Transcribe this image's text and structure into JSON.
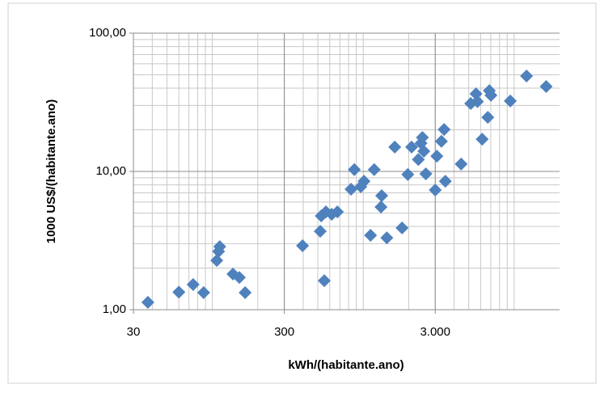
{
  "chart_data": {
    "type": "scatter",
    "xlabel": "kWh/(habitante.ano)",
    "ylabel": "1000 US$/(habitante.ano)",
    "x_log": true,
    "y_log": true,
    "grid": true,
    "minor_grid": true,
    "xlim": [
      30,
      20000
    ],
    "ylim": [
      1,
      100
    ],
    "xticks": [
      30,
      300,
      {
        "value": 3000,
        "label": "3.000"
      }
    ],
    "yticks": [
      {
        "value": 1,
        "label": "1,00"
      },
      {
        "value": 10,
        "label": "10,00"
      },
      {
        "value": 100,
        "label": "100,00"
      }
    ],
    "color": "#4f81bd",
    "x": [
      37.4,
      60,
      74.6,
      87.6,
      107,
      110,
      112,
      137,
      151,
      165,
      396,
      519,
      527,
      552,
      566,
      618,
      674,
      830,
      873,
      963,
      1012,
      1118,
      1182,
      1311,
      1325,
      1433,
      1618,
      1808,
      1974,
      2092,
      2318,
      2416,
      2467,
      2520,
      2600,
      3000,
      3075,
      3296,
      3434,
      3500,
      4455,
      5155,
      5590,
      5710,
      6140,
      6690,
      6850,
      7020,
      9430,
      12080,
      16300
    ],
    "values": [
      1.13,
      1.34,
      1.52,
      1.33,
      2.27,
      2.64,
      2.86,
      1.81,
      1.71,
      1.33,
      2.9,
      3.69,
      4.77,
      1.62,
      5.1,
      4.9,
      5.1,
      7.44,
      10.3,
      7.75,
      8.5,
      3.45,
      10.3,
      5.53,
      6.68,
      3.31,
      15.0,
      3.9,
      9.5,
      15.0,
      12.2,
      16.0,
      17.6,
      14.0,
      9.6,
      7.34,
      12.9,
      16.5,
      20.1,
      8.5,
      11.3,
      31.0,
      36.4,
      32.0,
      17.1,
      24.6,
      38.4,
      35.5,
      32.3,
      49.0,
      41.1
    ]
  }
}
